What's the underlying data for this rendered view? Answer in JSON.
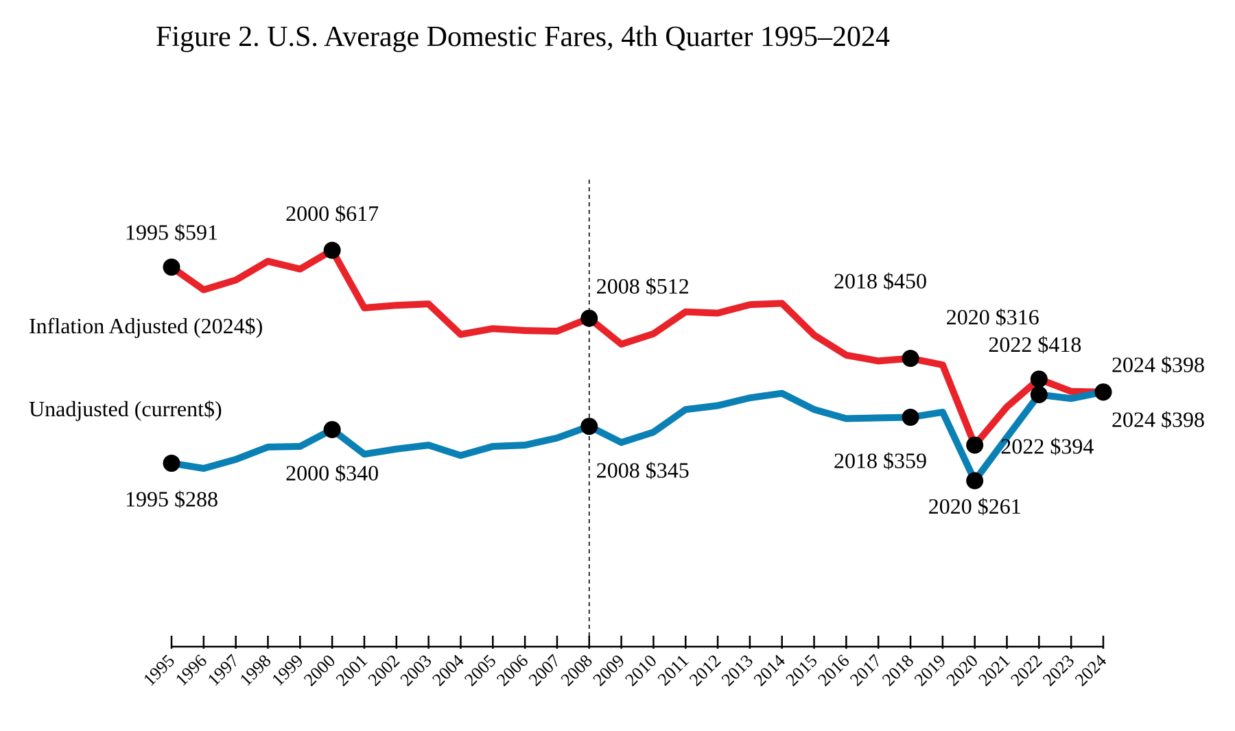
{
  "chart_data": {
    "type": "line",
    "title": "Figure 2. U.S. Average Domestic Fares, 4th Quarter 1995–2024",
    "xlabel": "",
    "ylabel": "",
    "ylim": [
      0,
      700
    ],
    "grid": false,
    "legend": "inline",
    "categories": [
      "1995",
      "1996",
      "1997",
      "1998",
      "1999",
      "2000",
      "2001",
      "2002",
      "2003",
      "2004",
      "2005",
      "2006",
      "2007",
      "2008",
      "2009",
      "2010",
      "2011",
      "2012",
      "2013",
      "2014",
      "2015",
      "2016",
      "2017",
      "2018",
      "2019",
      "2020",
      "2021",
      "2022",
      "2023",
      "2024"
    ],
    "reference_line": "2008",
    "colors": {
      "inflation_adjusted": "#e8232a",
      "unadjusted": "#0a80b5",
      "marker": "#000000"
    },
    "series": [
      {
        "key": "inflation_adjusted",
        "name": "Inflation Adjusted (2024$)",
        "values": [
          591,
          556,
          571,
          600,
          588,
          617,
          528,
          532,
          534,
          487,
          496,
          493,
          492,
          512,
          472,
          488,
          522,
          520,
          533,
          535,
          486,
          455,
          446,
          450,
          440,
          316,
          375,
          418,
          399,
          398
        ],
        "highlights": [
          {
            "year": "1995",
            "label": "1995 $591"
          },
          {
            "year": "2000",
            "label": "2000 $617"
          },
          {
            "year": "2008",
            "label": "2008 $512"
          },
          {
            "year": "2018",
            "label": "2018 $450"
          },
          {
            "year": "2020",
            "label": "2020 $316"
          },
          {
            "year": "2022",
            "label": "2022 $418"
          },
          {
            "year": "2024",
            "label": "2024 $398"
          }
        ]
      },
      {
        "key": "unadjusted",
        "name": "Unadjusted (current$)",
        "values": [
          288,
          280,
          294,
          313,
          314,
          340,
          302,
          310,
          316,
          300,
          314,
          316,
          327,
          345,
          320,
          336,
          371,
          377,
          389,
          396,
          371,
          357,
          358,
          359,
          367,
          261,
          328,
          394,
          388,
          398
        ],
        "highlights": [
          {
            "year": "1995",
            "label": "1995 $288"
          },
          {
            "year": "2000",
            "label": "2000 $340"
          },
          {
            "year": "2008",
            "label": "2008 $345"
          },
          {
            "year": "2018",
            "label": "2018 $359"
          },
          {
            "year": "2020",
            "label": "2020 $261"
          },
          {
            "year": "2022",
            "label": "2022 $394"
          },
          {
            "year": "2024",
            "label": "2024 $398"
          }
        ]
      }
    ]
  }
}
